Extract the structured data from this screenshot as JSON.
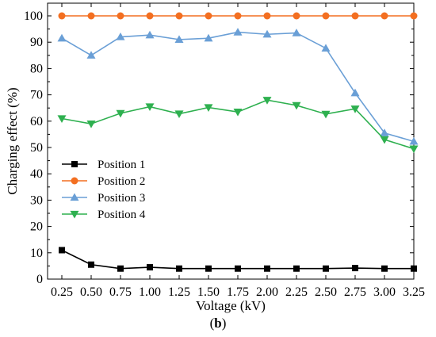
{
  "chart_data": {
    "type": "line",
    "title": "",
    "xlabel": "Voltage (kV)",
    "ylabel": "Charging effect (%)",
    "x": [
      0.25,
      0.5,
      0.75,
      1.0,
      1.25,
      1.5,
      1.75,
      2.0,
      2.25,
      2.5,
      2.75,
      3.0,
      3.25
    ],
    "x_tick_labels": [
      "0.25",
      "0.50",
      "0.75",
      "1.00",
      "1.25",
      "1.50",
      "1.75",
      "2.00",
      "2.25",
      "2.50",
      "2.75",
      "3.00",
      "3.25"
    ],
    "ylim": [
      0,
      100
    ],
    "y_ticks": [
      0,
      10,
      20,
      30,
      40,
      50,
      60,
      70,
      80,
      90,
      100
    ],
    "grid": false,
    "legend_position": "center-left",
    "series": [
      {
        "name": "Position 1",
        "color": "#000000",
        "marker": "square",
        "values": [
          11,
          5.5,
          4,
          4.5,
          4,
          4,
          4,
          4,
          4,
          4,
          4.2,
          4,
          4
        ]
      },
      {
        "name": "Position 2",
        "color": "#f36f21",
        "marker": "circle",
        "values": [
          100,
          100,
          100,
          100,
          100,
          100,
          100,
          100,
          100,
          100,
          100,
          100,
          100
        ]
      },
      {
        "name": "Position 3",
        "color": "#6a9fd6",
        "marker": "triangle-up",
        "values": [
          91.5,
          85,
          92,
          92.7,
          91,
          91.5,
          93.8,
          93,
          93.5,
          87.7,
          70.7,
          55.5,
          52.3
        ]
      },
      {
        "name": "Position 4",
        "color": "#2eb04f",
        "marker": "triangle-down",
        "values": [
          61,
          59,
          63,
          65.5,
          62.8,
          65.2,
          63.5,
          68,
          66,
          62.7,
          64.7,
          53,
          49.5
        ]
      }
    ]
  },
  "caption": {
    "label": "b"
  }
}
